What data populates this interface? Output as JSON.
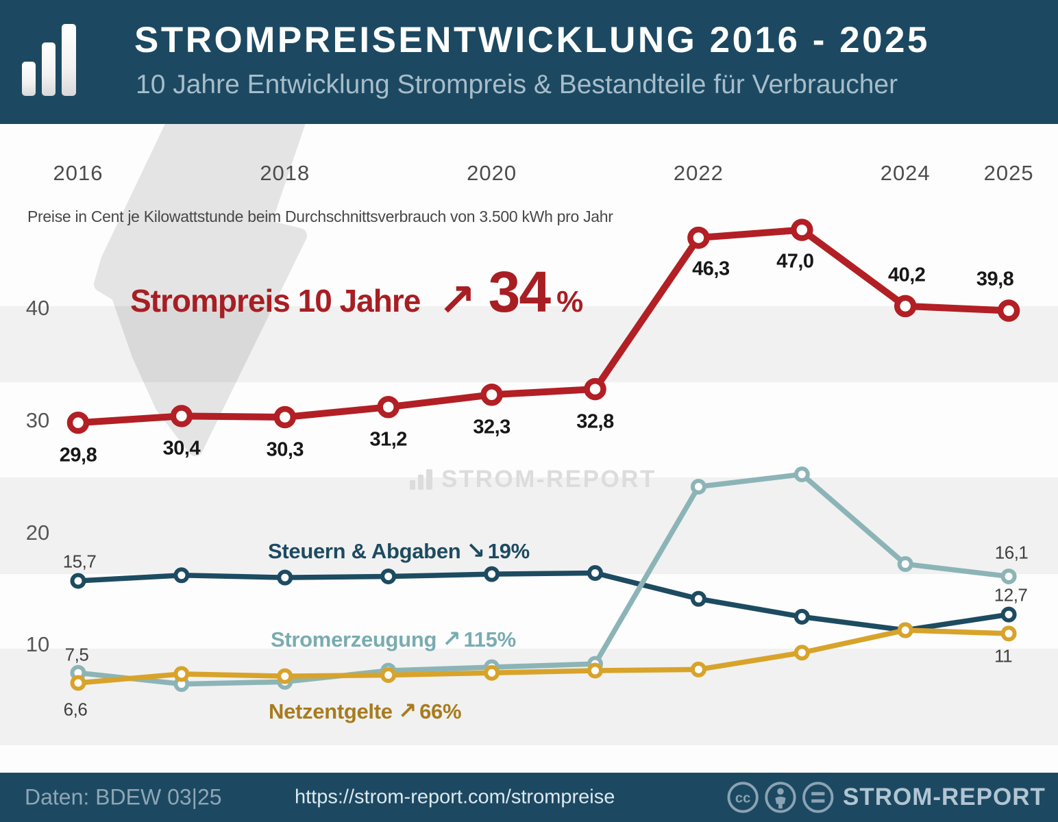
{
  "header": {
    "title": "STROMPREISENTWICKLUNG 2016 - 2025",
    "subtitle": "10 Jahre Entwicklung Strompreis & Bestandteile für Verbraucher"
  },
  "note": "Preise in Cent je Kilowattstunde beim Durchschnittsverbrauch von 3.500 kWh pro Jahr",
  "headline": {
    "label": "Strompreis 10 Jahre",
    "arrow": "↗",
    "value": "34",
    "unit": "%"
  },
  "watermark": {
    "text": "STROM-REPORT",
    "icon": "bar-chart-icon"
  },
  "annotations": {
    "steuern": {
      "label": "Steuern & Abgaben",
      "arrow": "↘",
      "pct": "19%"
    },
    "erzeugung": {
      "label": "Stromerzeugung",
      "arrow": "↗",
      "pct": "115%"
    },
    "netz": {
      "label": "Netzentgelte",
      "arrow": "↗",
      "pct": "66%"
    }
  },
  "chart_data": {
    "type": "line",
    "title": "Strompreisentwicklung 2016 - 2025",
    "subtitle": "10 Jahre Entwicklung Strompreis & Bestandteile für Verbraucher",
    "unit": "Cent je Kilowattstunde (bei 3.500 kWh/Jahr)",
    "x": [
      2016,
      2017,
      2018,
      2019,
      2020,
      2021,
      2022,
      2023,
      2024,
      2025
    ],
    "x_tick_labels": [
      "2016",
      "2018",
      "2020",
      "2022",
      "2024",
      "2025"
    ],
    "x_tick_years": [
      2016,
      2018,
      2020,
      2022,
      2024,
      2025
    ],
    "y_ticks": [
      40,
      30,
      20,
      10
    ],
    "ylim": [
      5,
      50
    ],
    "grid": false,
    "legend_position": "inline-annotations",
    "series": [
      {
        "name": "Strompreis",
        "color": "#b21f24",
        "change": "+34%",
        "values": [
          29.8,
          30.4,
          30.3,
          31.2,
          32.3,
          32.8,
          46.3,
          47.0,
          40.2,
          39.8
        ],
        "point_labels": [
          "29,8",
          "30,4",
          "30,3",
          "31,2",
          "32,3",
          "32,8",
          "46,3",
          "47,0",
          "40,2",
          "39,8"
        ]
      },
      {
        "name": "Steuern & Abgaben",
        "color": "#1d4b61",
        "change": "-19%",
        "values": [
          15.7,
          16.2,
          16.0,
          16.1,
          16.3,
          16.4,
          14.1,
          12.5,
          11.3,
          12.7
        ],
        "point_labels": [
          "15,7",
          null,
          null,
          null,
          null,
          null,
          null,
          null,
          null,
          "12,7"
        ]
      },
      {
        "name": "Stromerzeugung",
        "color": "#8cb4b7",
        "change": "+115%",
        "values": [
          7.5,
          6.5,
          6.7,
          7.7,
          8.0,
          8.3,
          24.1,
          25.2,
          17.2,
          16.1
        ],
        "point_labels": [
          "7,5",
          null,
          null,
          null,
          null,
          null,
          null,
          null,
          null,
          "16,1"
        ]
      },
      {
        "name": "Netzentgelte",
        "color": "#d8a32a",
        "change": "+66%",
        "values": [
          6.6,
          7.4,
          7.2,
          7.3,
          7.5,
          7.7,
          7.8,
          9.3,
          11.3,
          11.0
        ],
        "point_labels": [
          "6,6",
          null,
          null,
          null,
          null,
          null,
          null,
          null,
          null,
          "11"
        ]
      }
    ]
  },
  "footer": {
    "source": "Daten: BDEW 03|25",
    "url": "https://strom-report.com/strompreise",
    "brand": "STROM-REPORT",
    "license": [
      "cc",
      "by",
      "nd"
    ]
  },
  "colors": {
    "header_bg": "#1c4961",
    "strompreis_red": "#b21f24",
    "headline_red": "#a71e23",
    "steuern_teal": "#1d4b61",
    "erzeugung_teal": "#8cb4b7",
    "netzentgelte_gold": "#d8a32a",
    "netzentgelte_text": "#a87b1e",
    "stripe": "rgba(0,0,0,0.047)",
    "bolt_gray": "#e4e4e4",
    "watermark_gray": "#dcdcdc"
  }
}
